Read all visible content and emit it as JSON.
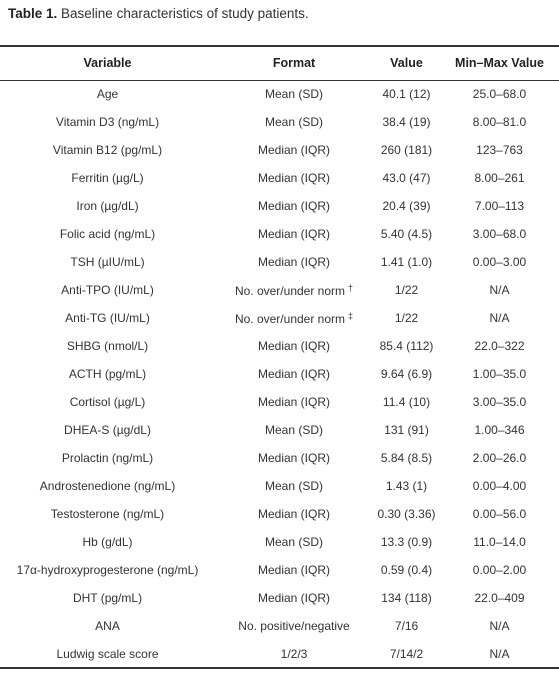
{
  "caption": {
    "label": "Table 1.",
    "text": " Baseline characteristics of study patients."
  },
  "headers": [
    "Variable",
    "Format",
    "Value",
    "Min–Max Value"
  ],
  "rows": [
    {
      "variable": "Age",
      "format": "Mean (SD)",
      "mark": "",
      "value": "40.1 (12)",
      "range": "25.0–68.0"
    },
    {
      "variable": "Vitamin D3 (ng/mL)",
      "format": "Mean (SD)",
      "mark": "",
      "value": "38.4 (19)",
      "range": "8.00–81.0"
    },
    {
      "variable": "Vitamin B12 (pg/mL)",
      "format": "Median (IQR)",
      "mark": "",
      "value": "260 (181)",
      "range": "123–763"
    },
    {
      "variable": "Ferritin (µg/L)",
      "format": "Median (IQR)",
      "mark": "",
      "value": "43.0 (47)",
      "range": "8.00–261"
    },
    {
      "variable": "Iron (µg/dL)",
      "format": "Median (IQR)",
      "mark": "",
      "value": "20.4 (39)",
      "range": "7.00–113"
    },
    {
      "variable": "Folic acid (ng/mL)",
      "format": "Median (IQR)",
      "mark": "",
      "value": "5.40 (4.5)",
      "range": "3.00–68.0"
    },
    {
      "variable": "TSH (µIU/mL)",
      "format": "Median (IQR)",
      "mark": "",
      "value": "1.41 (1.0)",
      "range": "0.00–3.00"
    },
    {
      "variable": "Anti-TPO (IU/mL)",
      "format": "No. over/under norm",
      "mark": "†",
      "value": "1/22",
      "range": "N/A"
    },
    {
      "variable": "Anti-TG (IU/mL)",
      "format": "No. over/under norm",
      "mark": "‡",
      "value": "1/22",
      "range": "N/A"
    },
    {
      "variable": "SHBG (nmol/L)",
      "format": "Median (IQR)",
      "mark": "",
      "value": "85.4 (112)",
      "range": "22.0–322"
    },
    {
      "variable": "ACTH (pg/mL)",
      "format": "Median (IQR)",
      "mark": "",
      "value": "9.64 (6.9)",
      "range": "1.00–35.0"
    },
    {
      "variable": "Cortisol (µg/L)",
      "format": "Median (IQR)",
      "mark": "",
      "value": "11.4 (10)",
      "range": "3.00–35.0"
    },
    {
      "variable": "DHEA-S (µg/dL)",
      "format": "Mean (SD)",
      "mark": "",
      "value": "131 (91)",
      "range": "1.00–346"
    },
    {
      "variable": "Prolactin (ng/mL)",
      "format": "Median (IQR)",
      "mark": "",
      "value": "5.84 (8.5)",
      "range": "2.00–26.0"
    },
    {
      "variable": "Androstenedione (ng/mL)",
      "format": "Mean (SD)",
      "mark": "",
      "value": "1.43 (1)",
      "range": "0.00–4.00"
    },
    {
      "variable": "Testosterone (ng/mL)",
      "format": "Median (IQR)",
      "mark": "",
      "value": "0.30 (3.36)",
      "range": "0.00–56.0"
    },
    {
      "variable": "Hb (g/dL)",
      "format": "Mean (SD)",
      "mark": "",
      "value": "13.3 (0.9)",
      "range": "11.0–14.0"
    },
    {
      "variable": "17α-hydroxyprogesterone (ng/mL)",
      "format": "Median (IQR)",
      "mark": "",
      "value": "0.59 (0.4)",
      "range": "0.00–2.00"
    },
    {
      "variable": "DHT (pg/mL)",
      "format": "Median (IQR)",
      "mark": "",
      "value": "134 (118)",
      "range": "22.0–409"
    },
    {
      "variable": "ANA",
      "format": "No. positive/negative",
      "mark": "",
      "value": "7/16",
      "range": "N/A"
    },
    {
      "variable": "Ludwig scale score",
      "format": "1/2/3",
      "mark": "",
      "value": "7/14/2",
      "range": "N/A"
    }
  ]
}
